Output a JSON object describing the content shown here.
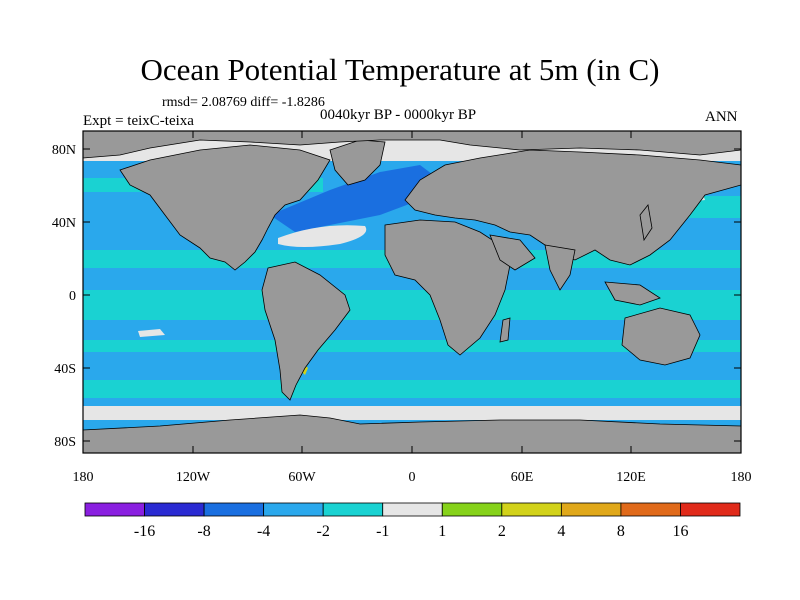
{
  "header": {
    "title": "Ocean Potential Temperature at 5m (in C)",
    "stats": "rmsd= 2.08769 diff= -1.8286",
    "experiment": "Expt = teixC-teixa",
    "period": "0040kyr BP - 0000kyr BP",
    "season": "ANN"
  },
  "axes": {
    "y_ticks": [
      "80N",
      "40N",
      "0",
      "40S",
      "80S"
    ],
    "x_ticks": [
      "180",
      "120W",
      "60W",
      "0",
      "60E",
      "120E",
      "180"
    ]
  },
  "colorbar": {
    "labels": [
      "-16",
      "-8",
      "-4",
      "-2",
      "-1",
      "1",
      "2",
      "4",
      "8",
      "16"
    ],
    "colors": [
      "#8a1fe0",
      "#2a2ad2",
      "#1a6fe0",
      "#2aa8ec",
      "#1ad2d2",
      "#e6e6e6",
      "#86d21a",
      "#d2d21a",
      "#e0a81a",
      "#e06a1a",
      "#e02a1a"
    ]
  },
  "map_colors": {
    "land": "#999999",
    "cold_strong": "#1a6fe0",
    "cold": "#2aa8ec",
    "cool": "#1ad2d2",
    "neutral": "#e6e6e6",
    "warm": "#d2d21a"
  }
}
